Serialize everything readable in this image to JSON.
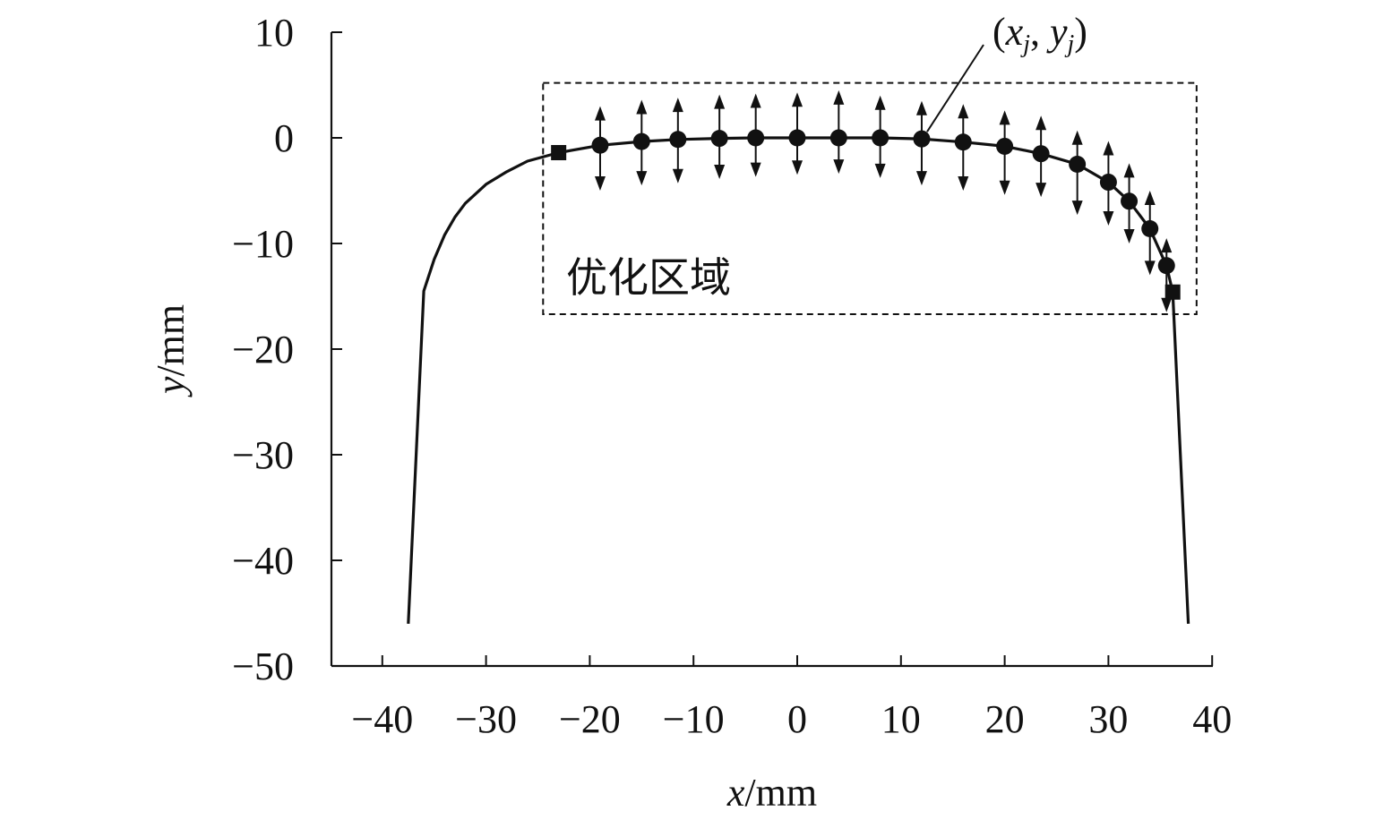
{
  "chart_data": {
    "type": "line",
    "xlabel": "x/mm",
    "xlabel_var": "x",
    "xlabel_unit": "/mm",
    "ylabel": "y/mm",
    "ylabel_var": "y",
    "ylabel_unit": "/mm",
    "xlim": [
      -45,
      40
    ],
    "ylim": [
      -50,
      10
    ],
    "x_ticks": [
      -40,
      -30,
      -20,
      -10,
      0,
      10,
      20,
      30,
      40
    ],
    "y_ticks": [
      10,
      0,
      -10,
      -20,
      -30,
      -40,
      -50
    ],
    "x_tick_labels": [
      "−40",
      "−30",
      "−20",
      "−10",
      "0",
      "10",
      "20",
      "30",
      "40"
    ],
    "y_tick_labels": [
      "10",
      "0",
      "−10",
      "−20",
      "−30",
      "−40",
      "−50"
    ],
    "grid": false,
    "series": [
      {
        "points": [
          [
            -37.5,
            -46
          ],
          [
            -36,
            -14.5
          ],
          [
            -35,
            -11.5
          ],
          [
            -34,
            -9.2
          ],
          [
            -33,
            -7.5
          ],
          [
            -32,
            -6.2
          ],
          [
            -30,
            -4.4
          ],
          [
            -28,
            -3.2
          ],
          [
            -26,
            -2.2
          ],
          [
            -23,
            -1.4
          ],
          [
            -19,
            -0.7
          ],
          [
            -15,
            -0.35
          ],
          [
            -11.5,
            -0.15
          ],
          [
            -7.5,
            -0.05
          ],
          [
            -4,
            0
          ],
          [
            0,
            0
          ],
          [
            4,
            0
          ],
          [
            8,
            0
          ],
          [
            12,
            -0.1
          ],
          [
            16,
            -0.4
          ],
          [
            20,
            -0.8
          ],
          [
            23.5,
            -1.5
          ],
          [
            27,
            -2.5
          ],
          [
            30,
            -4.2
          ],
          [
            32,
            -6.0
          ],
          [
            34,
            -8.6
          ],
          [
            35.6,
            -12.1
          ],
          [
            36.2,
            -14.6
          ],
          [
            37.7,
            -46
          ]
        ]
      }
    ],
    "control_points": {
      "x": [
        -19,
        -15,
        -11.5,
        -7.5,
        -4,
        0,
        4,
        8,
        12,
        16,
        20,
        23.5,
        27,
        30,
        32,
        34,
        35.6
      ],
      "y": [
        -0.7,
        -0.35,
        -0.15,
        -0.05,
        0,
        0,
        0,
        0,
        -0.1,
        -0.4,
        -0.8,
        -1.5,
        -2.5,
        -4.2,
        -6.0,
        -8.6,
        -12.1
      ],
      "arrow_up_to": [
        3.0,
        3.6,
        3.8,
        4.1,
        4.2,
        4.3,
        4.5,
        4.0,
        3.5,
        3.2,
        2.6,
        2.1,
        0.7,
        -0.3,
        -2.4,
        -5.0,
        -9.5
      ],
      "arrow_down_to": [
        -5.0,
        -4.5,
        -4.3,
        -3.9,
        -3.7,
        -3.5,
        -3.4,
        -3.8,
        -4.5,
        -5.0,
        -5.4,
        -5.6,
        -7.3,
        -8.3,
        -10.0,
        -13.0,
        -16.5
      ]
    },
    "endpoints": {
      "x": [
        -23,
        36.2
      ],
      "y": [
        -1.4,
        -14.6
      ]
    },
    "optimization_region": {
      "label": "优化区域",
      "x_range": [
        -24.5,
        38.5
      ],
      "y_range": [
        -16.7,
        5.2
      ]
    },
    "annotation": {
      "label_parts": [
        "(",
        "x",
        "j",
        ", ",
        "y",
        "j",
        ")"
      ],
      "target": [
        12,
        -0.1
      ],
      "text_at": [
        16,
        10.8
      ]
    }
  }
}
